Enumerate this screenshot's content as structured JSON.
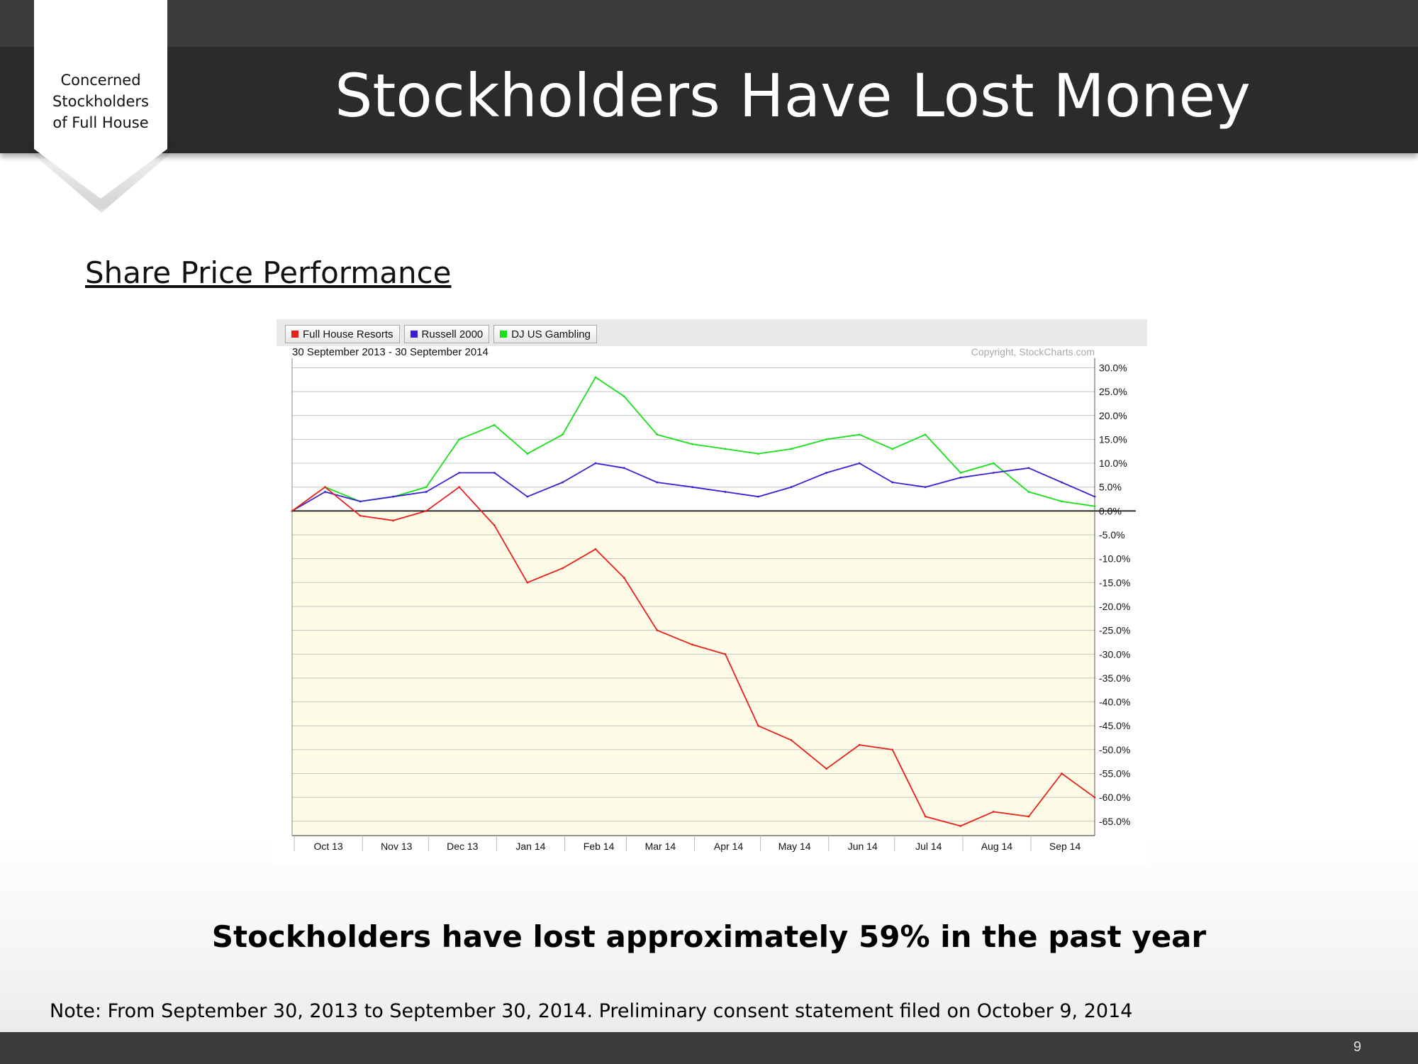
{
  "slide": {
    "badge_lines": [
      "Concerned",
      "Stockholders",
      "of Full House"
    ],
    "title": "Stockholders Have Lost Money",
    "subtitle": "Share Price Performance",
    "message": "Stockholders have lost approximately 59% in the past year",
    "note": "Note: From September 30, 2013 to September 30, 2014.  Preliminary consent statement filed on October 9, 2014",
    "page_number": "9"
  },
  "chart_data": {
    "type": "line",
    "range_label": "30 September 2013 - 30 September 2014",
    "copyright": "Copyright, StockCharts.com",
    "x_tick_labels": [
      "Oct 13",
      "Nov 13",
      "Dec 13",
      "Jan 14",
      "Feb 14",
      "Mar 14",
      "Apr 14",
      "May 14",
      "Jun 14",
      "Jul 14",
      "Aug 14",
      "Sep 14"
    ],
    "y_tick_labels": [
      "30.0%",
      "25.0%",
      "20.0%",
      "15.0%",
      "10.0%",
      "5.0%",
      "0.0%",
      "-5.0%",
      "-10.0%",
      "-15.0%",
      "-20.0%",
      "-25.0%",
      "-30.0%",
      "-35.0%",
      "-40.0%",
      "-45.0%",
      "-50.0%",
      "-55.0%",
      "-60.0%",
      "-65.0%"
    ],
    "ylim": [
      -68,
      32
    ],
    "y_axis_position": "right",
    "legend_placement": "top-left",
    "grid": true,
    "x": [
      "2013-09-30",
      "2013-10-15",
      "2013-10-31",
      "2013-11-15",
      "2013-11-30",
      "2013-12-15",
      "2013-12-31",
      "2014-01-15",
      "2014-01-31",
      "2014-02-15",
      "2014-02-28",
      "2014-03-15",
      "2014-03-31",
      "2014-04-15",
      "2014-04-30",
      "2014-05-15",
      "2014-05-31",
      "2014-06-15",
      "2014-06-30",
      "2014-07-15",
      "2014-07-31",
      "2014-08-15",
      "2014-08-31",
      "2014-09-15",
      "2014-09-30"
    ],
    "series": [
      {
        "name": "Full House Resorts",
        "color": "#e8201c",
        "values": [
          0,
          5,
          -1,
          -2,
          0,
          5,
          -3,
          -15,
          -12,
          -8,
          -14,
          -25,
          -28,
          -30,
          -45,
          -48,
          -54,
          -49,
          -50,
          -64,
          -66,
          -63,
          -64,
          -55,
          -60
        ]
      },
      {
        "name": "Russell 2000",
        "color": "#3b1fd6",
        "values": [
          0,
          4,
          2,
          3,
          4,
          8,
          8,
          3,
          6,
          10,
          9,
          6,
          5,
          4,
          3,
          5,
          8,
          10,
          6,
          5,
          7,
          8,
          9,
          6,
          3
        ]
      },
      {
        "name": "DJ US Gambling",
        "color": "#16e016",
        "values": [
          0,
          5,
          2,
          3,
          5,
          15,
          18,
          12,
          16,
          28,
          24,
          16,
          14,
          13,
          12,
          13,
          15,
          16,
          13,
          16,
          8,
          10,
          4,
          2,
          1
        ]
      }
    ]
  }
}
